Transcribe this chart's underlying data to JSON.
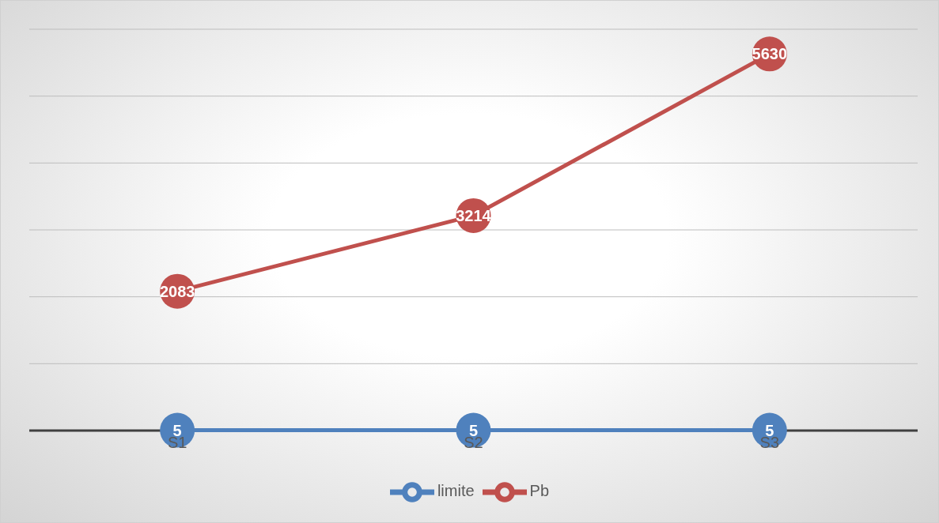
{
  "chart_data": {
    "type": "line",
    "categories": [
      "S1",
      "S2",
      "S3"
    ],
    "series": [
      {
        "name": "limite",
        "color": "#4f81bd",
        "values": [
          5,
          5,
          5
        ]
      },
      {
        "name": "Pb",
        "color": "#c0504d",
        "values": [
          2083,
          3214,
          5630
        ]
      }
    ],
    "ylim": [
      0,
      6000
    ],
    "yticks": [
      {
        "value": 0,
        "label": null
      },
      {
        "value": 1000,
        "label": null
      },
      {
        "value": 2000,
        "label": null
      },
      {
        "value": 3000,
        "label": null
      },
      {
        "value": 4000,
        "label": null
      },
      {
        "value": 5000,
        "label": null
      },
      {
        "value": 6000,
        "label": null
      }
    ],
    "tick_labels": "x",
    "grid": "y",
    "legend": "bottom",
    "marker": "circle",
    "line_style": "solid",
    "data_labels": true
  }
}
